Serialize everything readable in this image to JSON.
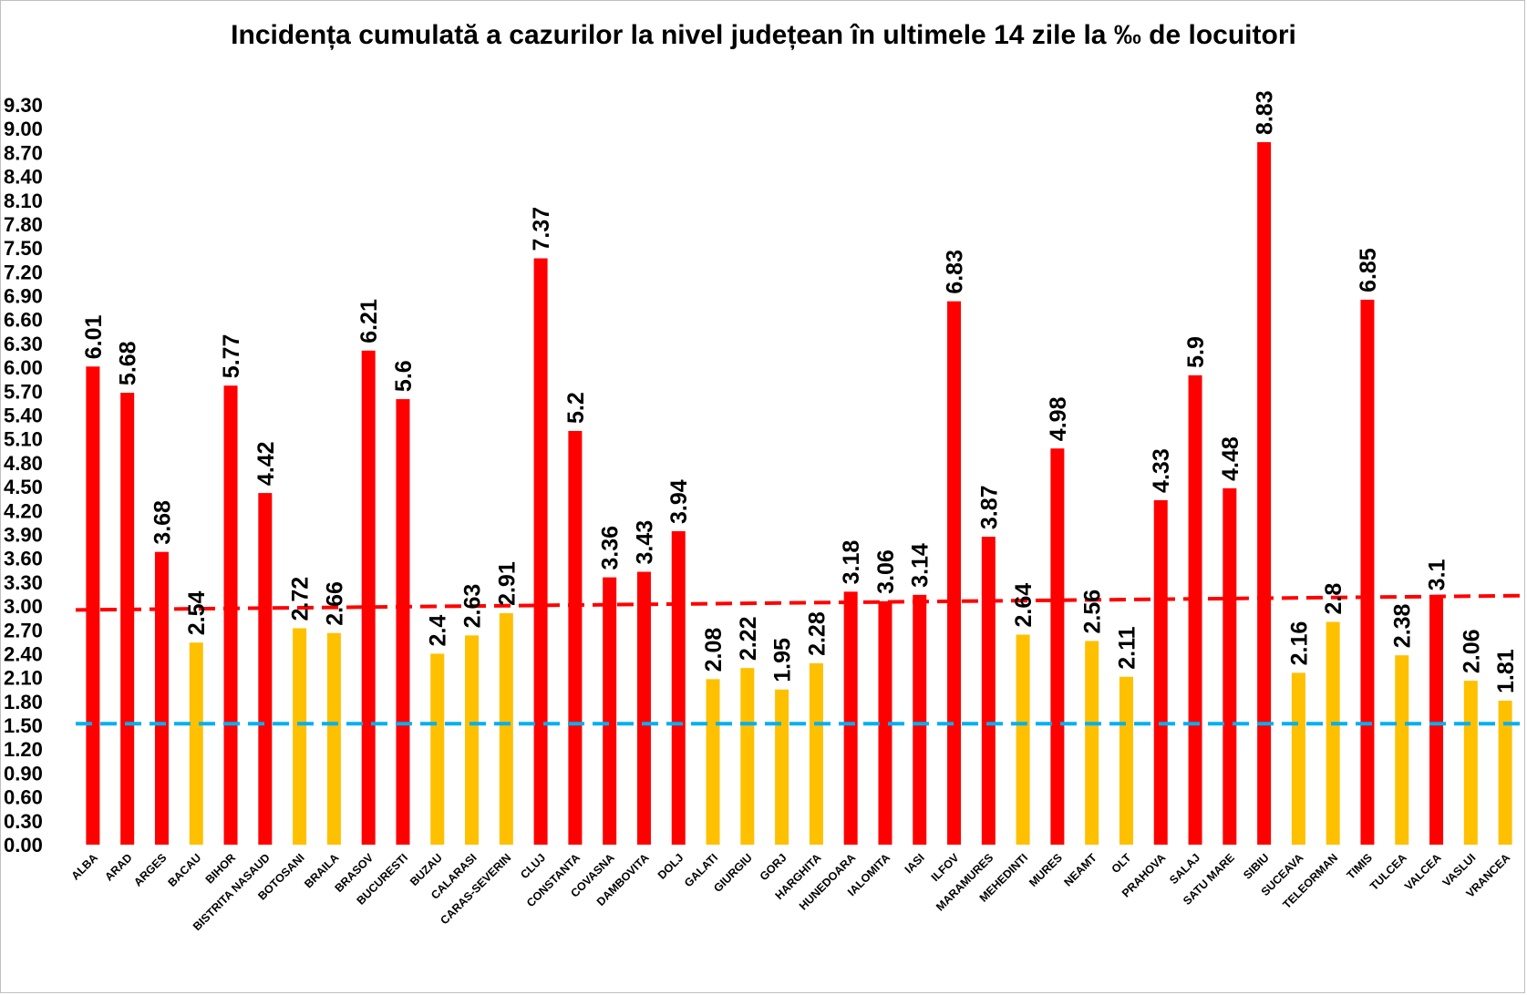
{
  "chart_data": {
    "type": "bar",
    "title": "Incidența cumulată a cazurilor la nivel județean în ultimele 14 zile la ‰ de locuitori",
    "xlabel": "",
    "ylabel": "",
    "ylim": [
      0,
      9.3
    ],
    "ytick_labels": [
      "0.00",
      "0.30",
      "0.60",
      "0.90",
      "1.20",
      "1.50",
      "1.80",
      "2.10",
      "2.40",
      "2.70",
      "3.00",
      "3.30",
      "3.60",
      "3.90",
      "4.20",
      "4.50",
      "4.80",
      "5.10",
      "5.40",
      "5.70",
      "6.00",
      "6.30",
      "6.60",
      "6.90",
      "7.20",
      "7.50",
      "7.80",
      "8.10",
      "8.40",
      "8.70",
      "9.00",
      "9.30"
    ],
    "grid": false,
    "legend": "none",
    "categories": [
      "ALBA",
      "ARAD",
      "ARGES",
      "BACAU",
      "BIHOR",
      "BISTRITA NASAUD",
      "BOTOSANI",
      "BRAILA",
      "BRASOV",
      "BUCURESTI",
      "BUZAU",
      "CALARASI",
      "CARAS-SEVERIN",
      "CLUJ",
      "CONSTANTA",
      "COVASNA",
      "DAMBOVITA",
      "DOLJ",
      "GALATI",
      "GIURGIU",
      "GORJ",
      "HARGHITA",
      "HUNEDOARA",
      "IALOMITA",
      "IASI",
      "ILFOV",
      "MARAMURES",
      "MEHEDINTI",
      "MURES",
      "NEAMT",
      "OLT",
      "PRAHOVA",
      "SALAJ",
      "SATU MARE",
      "SIBIU",
      "SUCEAVA",
      "TELEORMAN",
      "TIMIS",
      "TULCEA",
      "VALCEA",
      "VASLUI",
      "VRANCEA"
    ],
    "values": [
      6.01,
      5.68,
      3.68,
      2.54,
      5.77,
      4.42,
      2.72,
      2.66,
      6.21,
      5.6,
      2.4,
      2.63,
      2.91,
      7.37,
      5.2,
      3.36,
      3.43,
      3.94,
      2.08,
      2.22,
      1.95,
      2.28,
      3.18,
      3.06,
      3.14,
      6.83,
      3.87,
      2.64,
      4.98,
      2.56,
      2.11,
      4.33,
      5.9,
      4.48,
      8.83,
      2.16,
      2.8,
      6.85,
      2.38,
      3.1,
      2.06,
      1.81
    ],
    "data_labels": [
      "6.01",
      "5.68",
      "3.68",
      "2.54",
      "5.77",
      "4.42",
      "2.72",
      "2.66",
      "6.21",
      "5.6",
      "2.4",
      "2.63",
      "2.91",
      "7.37",
      "5.2",
      "3.36",
      "3.43",
      "3.94",
      "2.08",
      "2.22",
      "1.95",
      "2.28",
      "3.18",
      "3.06",
      "3.14",
      "6.83",
      "3.87",
      "2.64",
      "4.98",
      "2.56",
      "2.11",
      "4.33",
      "5.9",
      "4.48",
      "8.83",
      "2.16",
      "2.8",
      "6.85",
      "2.38",
      "3.1",
      "2.06",
      "1.81"
    ],
    "threshold_high": 3.0,
    "threshold_low": 1.5,
    "reference_lines": [
      {
        "color": "#ff0000",
        "from": 2.95,
        "to": 3.13
      },
      {
        "color": "#00b0f0",
        "value": 1.52
      }
    ],
    "colors": {
      "above_3": "#ff0000",
      "between_1_5_and_3": "#ffc000"
    }
  }
}
